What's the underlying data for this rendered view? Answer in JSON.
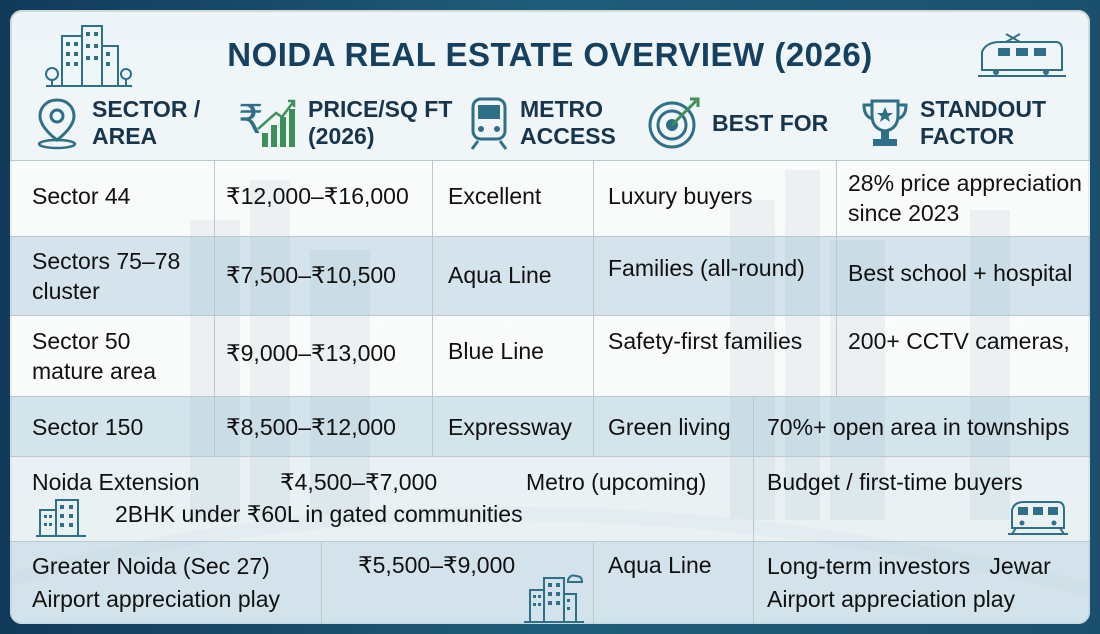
{
  "title": "NOIDA REAL ESTATE OVERVIEW (2026)",
  "headers": [
    {
      "label": "SECTOR /\nAREA",
      "icon": "location-pin-icon"
    },
    {
      "label": "PRICE/SQ FT\n(2026)",
      "icon": "rupee-growth-icon"
    },
    {
      "label": "METRO\nACCESS",
      "icon": "metro-train-icon"
    },
    {
      "label": "BEST FOR",
      "icon": "target-icon"
    },
    {
      "label": "STANDOUT\nFACTOR",
      "icon": "trophy-icon"
    }
  ],
  "rows": [
    {
      "area": "Sector 44",
      "price": "₹12,000–₹16,000",
      "metro": "Excellent",
      "best_for": "Luxury buyers",
      "standout": "28% price appreciation\nsince 2023"
    },
    {
      "area": "Sectors 75–78\ncluster",
      "price": "₹7,500–₹10,500",
      "metro": "Aqua Line",
      "best_for": "Families (all-round)",
      "standout": "Best school + hospital"
    },
    {
      "area": "Sector 50\nmature area",
      "price": "₹9,000–₹13,000",
      "metro": "Blue Line",
      "best_for": "Safety-first families",
      "standout": "200+ CCTV cameras,"
    },
    {
      "area": "Sector 150",
      "price": "₹8,500–₹12,000",
      "metro": "Expressway",
      "best_for": "Green living",
      "standout": "70%+ open area in townships"
    },
    {
      "area": "Noida Extension",
      "price": "₹4,500–₹7,000",
      "metro": "Metro (upcoming)",
      "best_for": "Budget / first-time buyers",
      "standout": "2BHK under ₹60L in gated communities"
    },
    {
      "area": "Greater Noida (Sec 27)\nAirport appreciation play",
      "price": "₹5,500–₹9,000",
      "metro": "Aqua Line",
      "best_for": "Long-term investors   Jewar\nAirport appreciation play",
      "standout": ""
    }
  ],
  "colors": {
    "title": "#16405f",
    "header_text": "#17354d",
    "icon_teal": "#2f6f87",
    "icon_green": "#3f8f5a"
  }
}
